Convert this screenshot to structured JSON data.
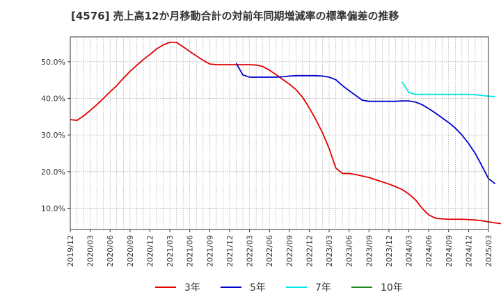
{
  "chart_data": {
    "type": "line",
    "title": "[4576]  売上高12か月移動合計の対前年同期増減率の標準偏差の推移",
    "xlabel": "",
    "ylabel": "",
    "x_ticks": [
      "2019/12",
      "2020/03",
      "2020/06",
      "2020/09",
      "2020/12",
      "2021/03",
      "2021/06",
      "2021/09",
      "2021/12",
      "2022/03",
      "2022/06",
      "2022/09",
      "2022/12",
      "2023/03",
      "2023/06",
      "2023/09",
      "2023/12",
      "2024/03",
      "2024/06",
      "2024/09",
      "2024/12",
      "2025/03"
    ],
    "y_ticks": [
      "10.0%",
      "20.0%",
      "30.0%",
      "40.0%",
      "50.0%"
    ],
    "ylim": [
      4.2,
      56.8
    ],
    "grid": true,
    "legend_position": "bottom",
    "series": [
      {
        "name": "3年",
        "color": "#e00000",
        "points": [
          [
            "2019/12",
            34.2
          ],
          [
            "2020/01",
            34.0
          ],
          [
            "2020/02",
            35.2
          ],
          [
            "2020/03",
            36.7
          ],
          [
            "2020/04",
            38.3
          ],
          [
            "2020/05",
            40.0
          ],
          [
            "2020/06",
            41.8
          ],
          [
            "2020/07",
            43.5
          ],
          [
            "2020/08",
            45.5
          ],
          [
            "2020/09",
            47.4
          ],
          [
            "2020/10",
            49.0
          ],
          [
            "2020/11",
            50.6
          ],
          [
            "2020/12",
            52.0
          ],
          [
            "2021/01",
            53.5
          ],
          [
            "2021/02",
            54.6
          ],
          [
            "2021/03",
            55.3
          ],
          [
            "2021/04",
            55.3
          ],
          [
            "2021/05",
            54.1
          ],
          [
            "2021/06",
            52.8
          ],
          [
            "2021/07",
            51.6
          ],
          [
            "2021/08",
            50.4
          ],
          [
            "2021/09",
            49.4
          ],
          [
            "2021/10",
            49.2
          ],
          [
            "2021/11",
            49.2
          ],
          [
            "2021/12",
            49.2
          ],
          [
            "2022/01",
            49.2
          ],
          [
            "2022/02",
            49.2
          ],
          [
            "2022/03",
            49.2
          ],
          [
            "2022/04",
            49.1
          ],
          [
            "2022/05",
            48.7
          ],
          [
            "2022/06",
            47.7
          ],
          [
            "2022/07",
            46.5
          ],
          [
            "2022/08",
            45.2
          ],
          [
            "2022/09",
            43.9
          ],
          [
            "2022/10",
            42.4
          ],
          [
            "2022/11",
            40.3
          ],
          [
            "2022/12",
            37.4
          ],
          [
            "2023/01",
            34.2
          ],
          [
            "2023/02",
            30.6
          ],
          [
            "2023/03",
            26.3
          ],
          [
            "2023/04",
            21.0
          ],
          [
            "2023/05",
            19.5
          ],
          [
            "2023/06",
            19.5
          ],
          [
            "2023/07",
            19.2
          ],
          [
            "2023/08",
            18.8
          ],
          [
            "2023/09",
            18.4
          ],
          [
            "2023/10",
            17.8
          ],
          [
            "2023/11",
            17.2
          ],
          [
            "2023/12",
            16.6
          ],
          [
            "2024/01",
            15.9
          ],
          [
            "2024/02",
            15.1
          ],
          [
            "2024/03",
            13.9
          ],
          [
            "2024/04",
            12.3
          ],
          [
            "2024/05",
            10.0
          ],
          [
            "2024/06",
            8.2
          ],
          [
            "2024/07",
            7.3
          ],
          [
            "2024/08",
            7.1
          ],
          [
            "2024/09",
            7.0
          ],
          [
            "2024/10",
            7.0
          ],
          [
            "2024/11",
            7.0
          ],
          [
            "2024/12",
            6.9
          ],
          [
            "2025/01",
            6.8
          ],
          [
            "2025/02",
            6.6
          ],
          [
            "2025/03",
            6.3
          ],
          [
            "2025/04",
            6.0
          ],
          [
            "2025/05",
            5.8
          ]
        ]
      },
      {
        "name": "5年",
        "color": "#0000cc",
        "points": [
          [
            "2022/01",
            49.6
          ],
          [
            "2022/02",
            46.4
          ],
          [
            "2022/03",
            45.8
          ],
          [
            "2022/04",
            45.8
          ],
          [
            "2022/05",
            45.8
          ],
          [
            "2022/06",
            45.8
          ],
          [
            "2022/07",
            45.8
          ],
          [
            "2022/08",
            45.9
          ],
          [
            "2022/09",
            46.1
          ],
          [
            "2022/10",
            46.2
          ],
          [
            "2022/11",
            46.2
          ],
          [
            "2022/12",
            46.2
          ],
          [
            "2023/01",
            46.2
          ],
          [
            "2023/02",
            46.1
          ],
          [
            "2023/03",
            45.8
          ],
          [
            "2023/04",
            45.1
          ],
          [
            "2023/05",
            43.5
          ],
          [
            "2023/06",
            42.1
          ],
          [
            "2023/07",
            40.8
          ],
          [
            "2023/08",
            39.5
          ],
          [
            "2023/09",
            39.2
          ],
          [
            "2023/10",
            39.2
          ],
          [
            "2023/11",
            39.2
          ],
          [
            "2023/12",
            39.2
          ],
          [
            "2024/01",
            39.2
          ],
          [
            "2024/02",
            39.3
          ],
          [
            "2024/03",
            39.3
          ],
          [
            "2024/04",
            39.0
          ],
          [
            "2024/05",
            38.3
          ],
          [
            "2024/06",
            37.2
          ],
          [
            "2024/07",
            36.0
          ],
          [
            "2024/08",
            34.7
          ],
          [
            "2024/09",
            33.4
          ],
          [
            "2024/10",
            31.9
          ],
          [
            "2024/11",
            30.0
          ],
          [
            "2024/12",
            27.7
          ],
          [
            "2025/01",
            25.0
          ],
          [
            "2025/02",
            21.6
          ],
          [
            "2025/03",
            18.1
          ],
          [
            "2025/04",
            16.7
          ]
        ]
      },
      {
        "name": "7年",
        "color": "#00e5e5",
        "points": [
          [
            "2024/02",
            44.5
          ],
          [
            "2024/03",
            41.6
          ],
          [
            "2024/04",
            41.1
          ],
          [
            "2024/05",
            41.1
          ],
          [
            "2024/06",
            41.1
          ],
          [
            "2024/07",
            41.1
          ],
          [
            "2024/08",
            41.1
          ],
          [
            "2024/09",
            41.1
          ],
          [
            "2024/10",
            41.1
          ],
          [
            "2024/11",
            41.1
          ],
          [
            "2024/12",
            41.1
          ],
          [
            "2025/01",
            41.0
          ],
          [
            "2025/02",
            40.8
          ],
          [
            "2025/03",
            40.6
          ],
          [
            "2025/04",
            40.5
          ]
        ]
      },
      {
        "name": "10年",
        "color": "#1e8c1e",
        "points": []
      }
    ]
  }
}
